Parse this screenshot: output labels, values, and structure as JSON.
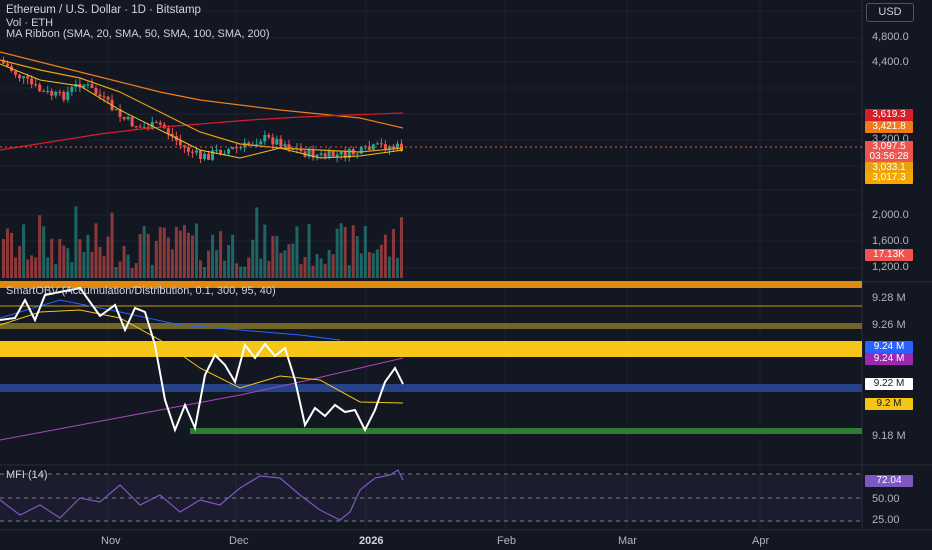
{
  "header": {
    "title": "Ethereum / U.S. Dollar · 1D · Bitstamp",
    "volume": "Vol · ETH",
    "ma_ribbon": "MA Ribbon (SMA, 20, SMA, 50, SMA, 100, SMA, 200)",
    "obv_indicator": "SmartOBV (Accumulation/Distribution, 0.1, 300, 95, 40)",
    "mfi_indicator": "MFI (14)"
  },
  "currency_button": "USD",
  "price_axis": [
    "4,800.0",
    "4,400.0",
    "3,200.0",
    "2,000.0",
    "1,600.0",
    "1,200.0"
  ],
  "price_tags": {
    "sma200": "3,619.3",
    "sma100": "3,421.8",
    "last_price": "3,097.5",
    "countdown": "03:56:28",
    "sma50": "3,033.1",
    "sma20": "3,017.3",
    "volume": "17.13K"
  },
  "obv_axis": [
    "9.28 M",
    "9.26 M",
    "9.18 M"
  ],
  "obv_tags": {
    "blue": "9.24 M",
    "purple": "9.24 M",
    "current": "9.22 M",
    "yellow": "9.2 M"
  },
  "mfi_axis": [
    "50.00",
    "25.00"
  ],
  "mfi_tag": "72.04",
  "time_axis": {
    "nov": "Nov",
    "dec": "Dec",
    "y2026": "2026",
    "feb": "Feb",
    "mar": "Mar",
    "apr": "Apr"
  },
  "colors": {
    "background": "#131722",
    "up_candle": "#26a69a",
    "down_candle": "#ef5350",
    "sma20": "#f5c518",
    "sma50": "#e8a010",
    "sma100": "#f07b1a",
    "sma200": "#d81e2a",
    "obv_line": "#ffffff",
    "mfi_line": "#7e57c2"
  }
}
